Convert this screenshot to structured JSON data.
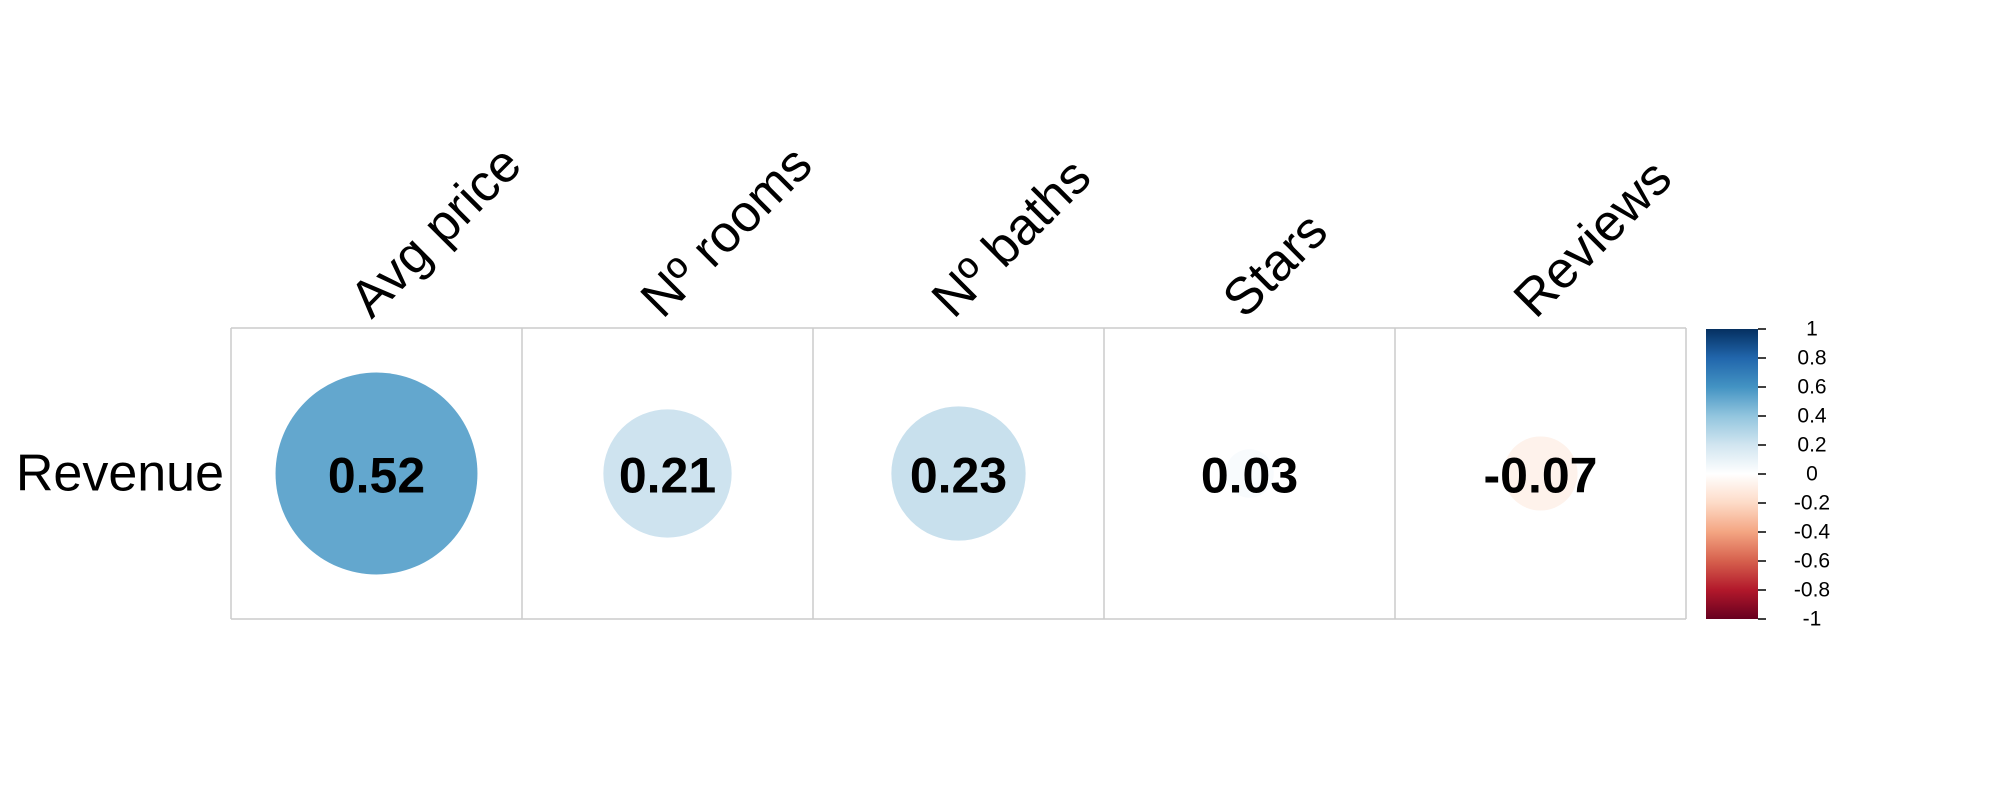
{
  "chart_data": {
    "type": "heatmap",
    "title": "",
    "rows": [
      "Revenue"
    ],
    "columns": [
      "Avg price",
      "Nº rooms",
      "Nº baths",
      "Stars",
      "Reviews"
    ],
    "values": [
      [
        0.52,
        0.21,
        0.23,
        0.03,
        -0.07
      ]
    ],
    "value_labels": [
      "0.52",
      "0.21",
      "0.23",
      "0.03",
      "-0.07"
    ],
    "glyph": "circle",
    "colorbar": {
      "range": [
        -1,
        1
      ],
      "ticks": [
        "1",
        "0.8",
        "0.6",
        "0.4",
        "0.2",
        "0",
        "-0.2",
        "-0.4",
        "-0.6",
        "-0.8",
        "-1"
      ],
      "colors": {
        "negative_end": "#67001F",
        "neutral": "#FFFFFF",
        "positive_end": "#053061"
      },
      "placement": "right"
    },
    "grid": true
  }
}
